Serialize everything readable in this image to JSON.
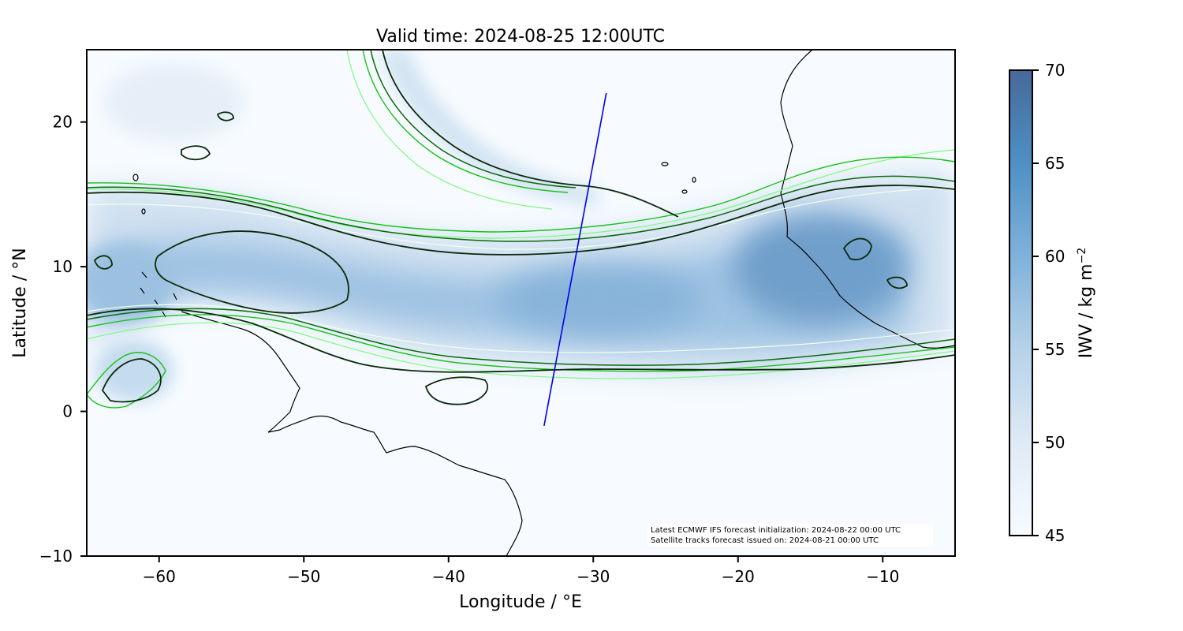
{
  "title": "Valid time: 2024-08-25 12:00UTC",
  "x_axis": {
    "label": "Longitude / °E",
    "range": [
      -65,
      -5
    ],
    "ticks": [
      -60,
      -50,
      -40,
      -30,
      -20,
      -10
    ],
    "tick_labels": [
      "−60",
      "−50",
      "−40",
      "−30",
      "−20",
      "−10"
    ]
  },
  "y_axis": {
    "label": "Latitude / °N",
    "range": [
      -10,
      25
    ],
    "ticks": [
      -10,
      0,
      10,
      20
    ],
    "tick_labels": [
      "−10",
      "0",
      "10",
      "20"
    ]
  },
  "colorbar": {
    "label_main": "IWV / kg m",
    "label_sup": "−2",
    "range": [
      45,
      70
    ],
    "ticks": [
      45,
      50,
      55,
      60,
      65,
      70
    ],
    "tick_labels": [
      "45",
      "50",
      "55",
      "60",
      "65",
      "70"
    ],
    "color_low": "#f7fbff",
    "color_high": "#4a6d9a"
  },
  "annotation": {
    "line1": "Latest ECMWF IFS forecast initialization: 2024-08-22 00:00 UTC",
    "line2": "Satellite tracks forecast issued on: 2024-08-21 00:00 UTC"
  },
  "satellite_track": {
    "color": "#0000ee",
    "start": {
      "lon": -33.4,
      "lat": -1.0
    },
    "end": {
      "lon": -29.1,
      "lat": 22.0
    }
  },
  "contour_colors": {
    "dark": "#0a2a0a",
    "green_dark": "#0a6a0a",
    "green": "#19c219",
    "green_light": "#7dfa7d",
    "white": "#f0fff0"
  },
  "moisture_band": {
    "axis_points": [
      {
        "lon": -65,
        "lat": 12.5
      },
      {
        "lon": -55,
        "lat": 10.5
      },
      {
        "lon": -45,
        "lat": 8.5
      },
      {
        "lon": -35,
        "lat": 7.5
      },
      {
        "lon": -25,
        "lat": 8.5
      },
      {
        "lon": -15,
        "lat": 9.5
      },
      {
        "lon": -5,
        "lat": 8.5
      }
    ]
  }
}
